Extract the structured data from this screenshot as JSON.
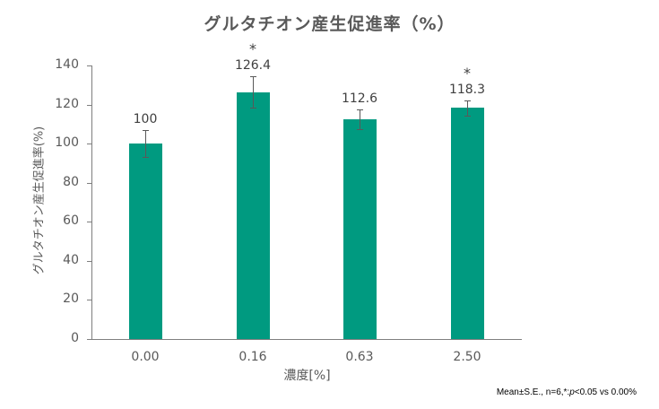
{
  "chart_data": {
    "type": "bar",
    "title": "グルタチオン産生促進率（%）",
    "xlabel": "濃度[%]",
    "ylabel": "グルタチオン産生促進率(%)",
    "categories": [
      "0.00",
      "0.16",
      "0.63",
      "2.50"
    ],
    "values": [
      100,
      126.4,
      112.6,
      118.3
    ],
    "value_labels": [
      "100",
      "126.4",
      "112.6",
      "118.3"
    ],
    "error_se": [
      7,
      8,
      5,
      4
    ],
    "significance": [
      "",
      "*",
      "",
      "*"
    ],
    "ylim": [
      0,
      140
    ],
    "yticks": [
      "0",
      "20",
      "40",
      "60",
      "80",
      "100",
      "120",
      "140"
    ],
    "grid": false,
    "legend": null,
    "bar_color": "#009a80",
    "annotation": {
      "prefix": "Mean±S.E., n=6,*:",
      "p": "p",
      "suffix": "<0.05 vs 0.00%"
    }
  }
}
